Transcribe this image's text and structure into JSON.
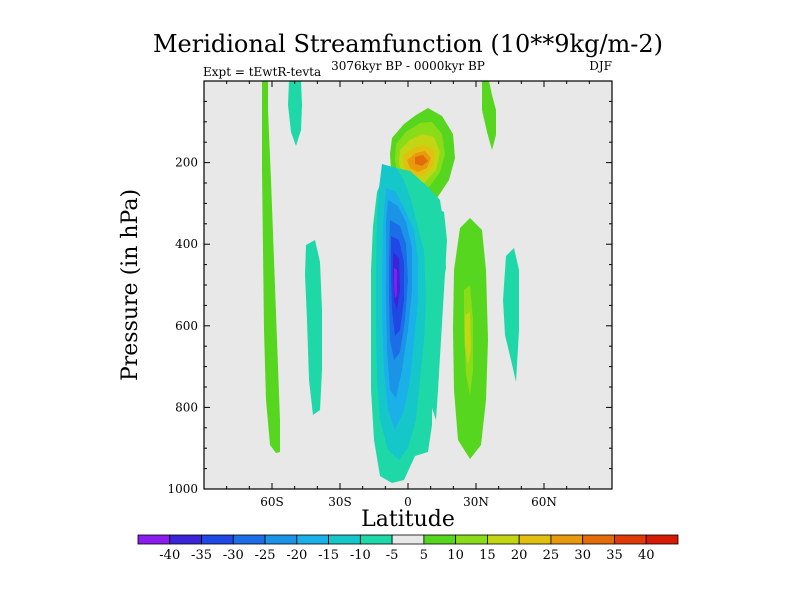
{
  "chart_data": {
    "type": "contour",
    "title": "Meridional Streamfunction (10**9kg/m-2)",
    "subtitle_left": "Expt = tEwtR-tevta",
    "subtitle_center": "3076kyr BP - 0000kyr BP",
    "subtitle_right": "DJF",
    "xlabel": "Latitude",
    "ylabel": "Pressure (in hPa)",
    "xlim": [
      -90,
      90
    ],
    "ylim": [
      1000,
      0
    ],
    "x_ticks": [
      {
        "value": -60,
        "label": "60S"
      },
      {
        "value": -30,
        "label": "30S"
      },
      {
        "value": 0,
        "label": "0"
      },
      {
        "value": 30,
        "label": "30N"
      },
      {
        "value": 60,
        "label": "60N"
      }
    ],
    "y_ticks": [
      {
        "value": 200,
        "label": "200"
      },
      {
        "value": 400,
        "label": "400"
      },
      {
        "value": 600,
        "label": "600"
      },
      {
        "value": 800,
        "label": "800"
      },
      {
        "value": 1000,
        "label": "1000"
      }
    ],
    "levels": [
      "-40",
      "-35",
      "-30",
      "-25",
      "-20",
      "-15",
      "-10",
      "-5",
      "5",
      "10",
      "15",
      "20",
      "25",
      "30",
      "35",
      "40"
    ],
    "level_colors": [
      "#8a1cf0",
      "#3c25d8",
      "#1f48e4",
      "#1c6de8",
      "#1b93e6",
      "#19b1e8",
      "#16c7c9",
      "#1ed8a8",
      "#e8e8e8",
      "#56d61e",
      "#8bdc18",
      "#c2d614",
      "#e2c010",
      "#e89a0c",
      "#e36c0a",
      "#e03a08",
      "#d81a04"
    ],
    "features": [
      {
        "name": "tropical-negative-cell",
        "lat_range": [
          -10,
          10
        ],
        "p_range": [
          200,
          980
        ],
        "min_value": -40
      },
      {
        "name": "upper-positive-cell",
        "lat_range": [
          -3,
          12
        ],
        "p_range": [
          100,
          280
        ],
        "max_value": 30
      },
      {
        "name": "southern-positive-band",
        "lat_range": [
          -64,
          -58
        ],
        "p_range": [
          0,
          910
        ],
        "max_value": 10
      },
      {
        "name": "northern-positive-band",
        "lat_range": [
          22,
          33
        ],
        "p_range": [
          300,
          930
        ],
        "max_value": 20
      }
    ]
  }
}
